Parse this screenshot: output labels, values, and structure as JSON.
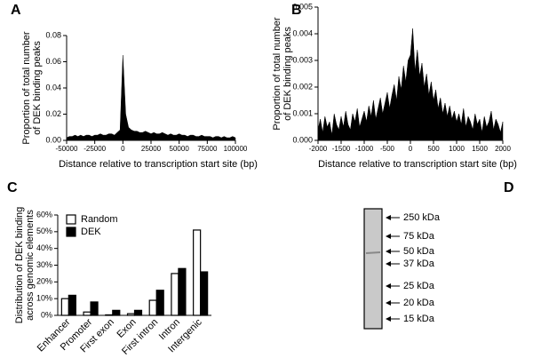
{
  "chart_data": [
    {
      "type": "area",
      "panel": "A",
      "color": "#000000",
      "ylabel": [
        "Proportion of total number",
        "of DEK binding peaks"
      ],
      "xlabel": "Distance relative to transcription start site (bp)",
      "x": [
        -50000,
        -47500,
        -45000,
        -42500,
        -40000,
        -37500,
        -35000,
        -32500,
        -30000,
        -27500,
        -25000,
        -22500,
        -20000,
        -17500,
        -15000,
        -12500,
        -10000,
        -7500,
        -5000,
        -2500,
        0,
        2500,
        5000,
        7500,
        10000,
        12500,
        15000,
        17500,
        20000,
        22500,
        25000,
        27500,
        30000,
        32500,
        35000,
        37500,
        40000,
        42500,
        45000,
        47500,
        50000,
        52500,
        55000,
        57500,
        60000,
        62500,
        65000,
        67500,
        70000,
        72500,
        75000,
        77500,
        80000,
        82500,
        85000,
        87500,
        90000,
        92500,
        95000,
        97500,
        100000
      ],
      "values": [
        0.002,
        0.003,
        0.003,
        0.004,
        0.003,
        0.004,
        0.003,
        0.004,
        0.004,
        0.003,
        0.004,
        0.004,
        0.005,
        0.004,
        0.004,
        0.005,
        0.005,
        0.004,
        0.006,
        0.008,
        0.065,
        0.02,
        0.01,
        0.008,
        0.007,
        0.007,
        0.006,
        0.006,
        0.007,
        0.006,
        0.005,
        0.006,
        0.005,
        0.005,
        0.006,
        0.005,
        0.004,
        0.005,
        0.004,
        0.004,
        0.005,
        0.004,
        0.004,
        0.003,
        0.004,
        0.004,
        0.003,
        0.003,
        0.004,
        0.003,
        0.003,
        0.003,
        0.002,
        0.003,
        0.003,
        0.002,
        0.003,
        0.002,
        0.002,
        0.003,
        0.002
      ],
      "xlim": [
        -50000,
        100000
      ],
      "xticks": [
        -50000,
        -25000,
        0,
        25000,
        50000,
        75000,
        100000
      ],
      "ylim": [
        0,
        0.08
      ],
      "yticks": [
        {
          "value": 0,
          "label": "0.00"
        },
        {
          "value": 0.02,
          "label": "0.02"
        },
        {
          "value": 0.04,
          "label": "0.04"
        },
        {
          "value": 0.06,
          "label": "0.06"
        },
        {
          "value": 0.08,
          "label": "0.08"
        }
      ]
    },
    {
      "type": "area",
      "panel": "B",
      "color": "#000000",
      "ylabel": [
        "Proportion of total number",
        "of DEK binding peaks"
      ],
      "xlabel": "Distance relative to transcription start site (bp)",
      "x": [
        -2000,
        -1950,
        -1900,
        -1850,
        -1800,
        -1750,
        -1700,
        -1650,
        -1600,
        -1550,
        -1500,
        -1450,
        -1400,
        -1350,
        -1300,
        -1250,
        -1200,
        -1150,
        -1100,
        -1050,
        -1000,
        -950,
        -900,
        -850,
        -800,
        -750,
        -700,
        -650,
        -600,
        -550,
        -500,
        -450,
        -400,
        -350,
        -300,
        -250,
        -200,
        -150,
        -100,
        -50,
        0,
        50,
        100,
        150,
        200,
        250,
        300,
        350,
        400,
        450,
        500,
        550,
        600,
        650,
        700,
        750,
        800,
        850,
        900,
        950,
        1000,
        1050,
        1100,
        1150,
        1200,
        1250,
        1300,
        1350,
        1400,
        1450,
        1500,
        1550,
        1600,
        1650,
        1700,
        1750,
        1800,
        1850,
        1900,
        1950,
        2000
      ],
      "values": [
        0.0004,
        0.0008,
        0.0003,
        0.0009,
        0.0005,
        0.0007,
        0.0002,
        0.001,
        0.0006,
        0.0004,
        0.0009,
        0.0005,
        0.0011,
        0.0006,
        0.0004,
        0.001,
        0.0007,
        0.0012,
        0.0005,
        0.0008,
        0.0011,
        0.0007,
        0.0013,
        0.0009,
        0.0015,
        0.0008,
        0.0012,
        0.0016,
        0.001,
        0.0014,
        0.0018,
        0.0012,
        0.0017,
        0.0021,
        0.0015,
        0.0024,
        0.0019,
        0.0028,
        0.0022,
        0.003,
        0.0032,
        0.0042,
        0.0026,
        0.0034,
        0.0024,
        0.0029,
        0.002,
        0.0025,
        0.0017,
        0.0022,
        0.0015,
        0.0019,
        0.0012,
        0.0016,
        0.001,
        0.0014,
        0.0009,
        0.0013,
        0.0008,
        0.0011,
        0.0007,
        0.001,
        0.0006,
        0.0012,
        0.0005,
        0.0009,
        0.0007,
        0.0004,
        0.001,
        0.0006,
        0.0008,
        0.0003,
        0.0009,
        0.0005,
        0.0007,
        0.0011,
        0.0004,
        0.0008,
        0.0006,
        0.0003,
        0.0007
      ],
      "xlim": [
        -2000,
        2000
      ],
      "xticks": [
        -2000,
        -1500,
        -1000,
        -500,
        0,
        500,
        1000,
        1500,
        2000
      ],
      "ylim": [
        0,
        0.005
      ],
      "yticks": [
        {
          "value": 0,
          "label": "0.000"
        },
        {
          "value": 0.001,
          "label": "0.001"
        },
        {
          "value": 0.002,
          "label": "0.002"
        },
        {
          "value": 0.003,
          "label": "0.003"
        },
        {
          "value": 0.004,
          "label": "0.004"
        },
        {
          "value": 0.005,
          "label": "0.005"
        }
      ]
    },
    {
      "type": "bar",
      "panel": "C",
      "ylabel": [
        "Distribution of DEK binding",
        "across genomic elements"
      ],
      "categories": [
        "Enhancer",
        "Promoter",
        "First exon",
        "Exon",
        "First intron",
        "Intron",
        "Intergenic"
      ],
      "series": [
        {
          "name": "Random",
          "color": "#ffffff",
          "values": [
            10,
            2,
            0.3,
            1,
            9,
            25,
            51
          ]
        },
        {
          "name": "DEK",
          "color": "#000000",
          "values": [
            12,
            8,
            3,
            3,
            15,
            28,
            26
          ]
        }
      ],
      "ylim": [
        0,
        60
      ],
      "yticks": [
        {
          "value": 0,
          "label": "0%"
        },
        {
          "value": 10,
          "label": "10%"
        },
        {
          "value": 20,
          "label": "20%"
        },
        {
          "value": 30,
          "label": "30%"
        },
        {
          "value": 40,
          "label": "40%"
        },
        {
          "value": 50,
          "label": "50%"
        },
        {
          "value": 60,
          "label": "60%"
        }
      ]
    },
    {
      "type": "blot",
      "panel": "D",
      "markers": [
        "250 kDa",
        "75 kDa",
        "50 kDa",
        "37 kDa",
        "25 kDa",
        "20 kDa",
        "15 kDa"
      ]
    }
  ]
}
